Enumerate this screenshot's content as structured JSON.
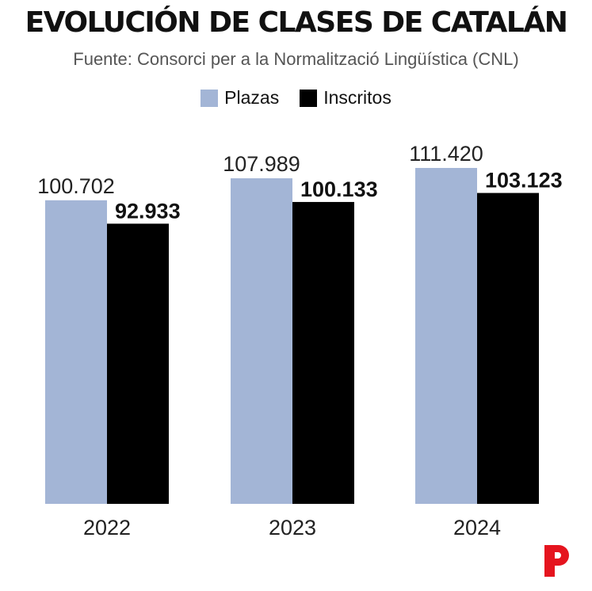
{
  "title": "EVOLUCIÓN DE CLASES DE CATALÁN",
  "subtitle": "Fuente: Consorci per a la Normalització Lingüística (CNL)",
  "colors": {
    "plazas": "#a3b5d6",
    "inscritos": "#000000",
    "brand": "#e5141e"
  },
  "logo_icon": "brand-p-logo",
  "chart_data": {
    "type": "bar",
    "categories": [
      "2022",
      "2023",
      "2024"
    ],
    "series": [
      {
        "name": "Plazas",
        "values": [
          100702,
          107989,
          111420
        ],
        "labels": [
          "100.702",
          "107.989",
          "111.420"
        ]
      },
      {
        "name": "Inscritos",
        "values": [
          92933,
          100133,
          103123
        ],
        "labels": [
          "92.933",
          "100.133",
          "103.123"
        ]
      }
    ],
    "title": "EVOLUCIÓN DE CLASES DE CATALÁN",
    "xlabel": "",
    "ylabel": "",
    "ylim": [
      0,
      111420
    ],
    "grid": false,
    "legend": "top-center"
  }
}
